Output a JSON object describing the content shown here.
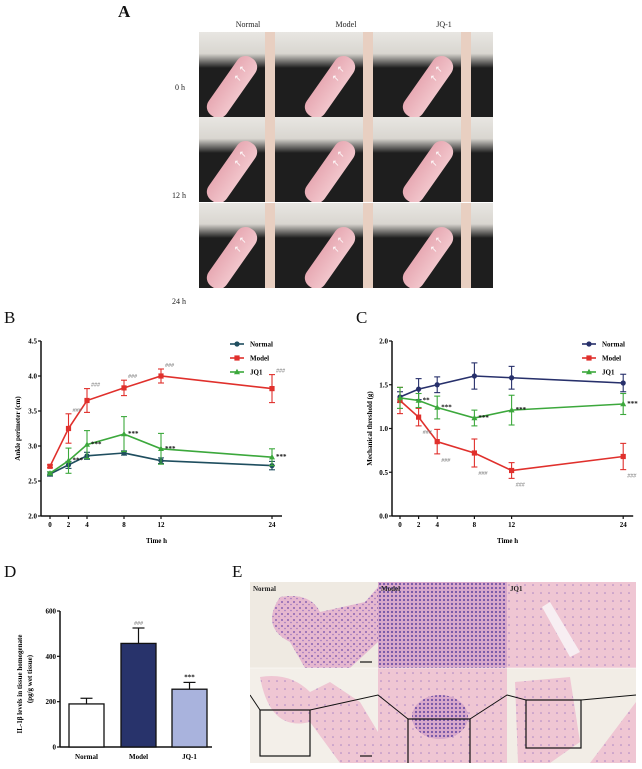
{
  "panels": {
    "A": {
      "letter": "A",
      "columns": [
        "Normal",
        "Model",
        "JQ-1"
      ],
      "rows": [
        "0 h",
        "12 h",
        "24 h"
      ],
      "arrow_glyph": "↖"
    },
    "B": {
      "letter": "B"
    },
    "C": {
      "letter": "C"
    },
    "D": {
      "letter": "D"
    },
    "E": {
      "letter": "E",
      "labels": [
        "Normal",
        "Model",
        "JQ1"
      ],
      "scale_bar": "100 μm"
    }
  },
  "chart_data": [
    {
      "id": "B",
      "type": "line",
      "title": "",
      "xlabel": "Time  h",
      "ylabel": "Ankle perimeter (cm)",
      "x": [
        0,
        2,
        4,
        8,
        12,
        24
      ],
      "xticks": [
        "0",
        "2",
        "4",
        "8",
        "12",
        "24"
      ],
      "ylim": [
        2.0,
        4.5
      ],
      "yticks": [
        "2.0",
        "2.5",
        "3.0",
        "3.5",
        "4.0",
        "4.5"
      ],
      "legend_position": "top-right",
      "series": [
        {
          "name": "Normal",
          "color": "#1f4e5f",
          "marker": "circle",
          "values": [
            2.6,
            2.73,
            2.86,
            2.9,
            2.79,
            2.72
          ],
          "errors": [
            0.03,
            0.05,
            0.05,
            0.03,
            0.04,
            0.06
          ],
          "annotations": [
            "",
            "",
            "",
            "",
            "",
            ""
          ]
        },
        {
          "name": "Model",
          "color": "#e0302c",
          "marker": "square",
          "values": [
            2.71,
            3.25,
            3.65,
            3.83,
            4.0,
            3.82
          ],
          "errors": [
            0.02,
            0.21,
            0.17,
            0.11,
            0.1,
            0.2
          ],
          "annotations": [
            "",
            "###",
            "###",
            "###",
            "###",
            "###"
          ]
        },
        {
          "name": "JQ1",
          "color": "#3ca83c",
          "marker": "triangle",
          "values": [
            2.61,
            2.79,
            3.02,
            3.17,
            2.96,
            2.84
          ],
          "errors": [
            0.02,
            0.18,
            0.2,
            0.25,
            0.22,
            0.12
          ],
          "annotations": [
            "",
            "***",
            "***",
            "***",
            "***",
            "***"
          ]
        }
      ]
    },
    {
      "id": "C",
      "type": "line",
      "title": "",
      "xlabel": "Time  h",
      "ylabel": "Mechanical threshold (g)",
      "x": [
        0,
        2,
        4,
        8,
        12,
        24
      ],
      "xticks": [
        "0",
        "2",
        "4",
        "8",
        "12",
        "24"
      ],
      "ylim": [
        0.0,
        2.0
      ],
      "yticks": [
        "0.0",
        "0.5",
        "1.0",
        "1.5",
        "2.0"
      ],
      "legend_position": "top-right",
      "series": [
        {
          "name": "Normal",
          "color": "#27306b",
          "marker": "circle",
          "values": [
            1.36,
            1.45,
            1.5,
            1.6,
            1.58,
            1.52
          ],
          "errors": [
            0.06,
            0.12,
            0.09,
            0.15,
            0.13,
            0.1
          ],
          "annotations": [
            "",
            "",
            "",
            "",
            "",
            ""
          ]
        },
        {
          "name": "Model",
          "color": "#e0302c",
          "marker": "square",
          "values": [
            1.32,
            1.13,
            0.85,
            0.72,
            0.52,
            0.68
          ],
          "errors": [
            0.15,
            0.1,
            0.14,
            0.16,
            0.09,
            0.15
          ],
          "annotations": [
            "",
            "###",
            "###",
            "###",
            "###",
            "###"
          ]
        },
        {
          "name": "JQ1",
          "color": "#3ca83c",
          "marker": "triangle",
          "values": [
            1.35,
            1.32,
            1.24,
            1.12,
            1.21,
            1.28
          ],
          "errors": [
            0.12,
            0.08,
            0.13,
            0.09,
            0.17,
            0.12
          ],
          "annotations": [
            "",
            "**",
            "***",
            "***",
            "***",
            "***"
          ]
        }
      ]
    },
    {
      "id": "D",
      "type": "bar",
      "title": "",
      "xlabel": "",
      "ylabel": "IL-1β levels in tissue homogenate (pg/g wet tissue)",
      "ylabel_line1": "IL-1β levels in tissue homogenate",
      "ylabel_line2": "(pg/g wet tissue)",
      "categories": [
        "Normal",
        "Model",
        "JQ-1"
      ],
      "values": [
        190,
        457,
        255
      ],
      "errors": [
        25,
        68,
        30
      ],
      "colors": [
        "#ffffff",
        "#28336b",
        "#a9b3dd"
      ],
      "annotations": [
        "",
        "###",
        "***"
      ],
      "ylim": [
        0,
        600
      ],
      "yticks": [
        "0",
        "200",
        "400",
        "600"
      ]
    }
  ]
}
